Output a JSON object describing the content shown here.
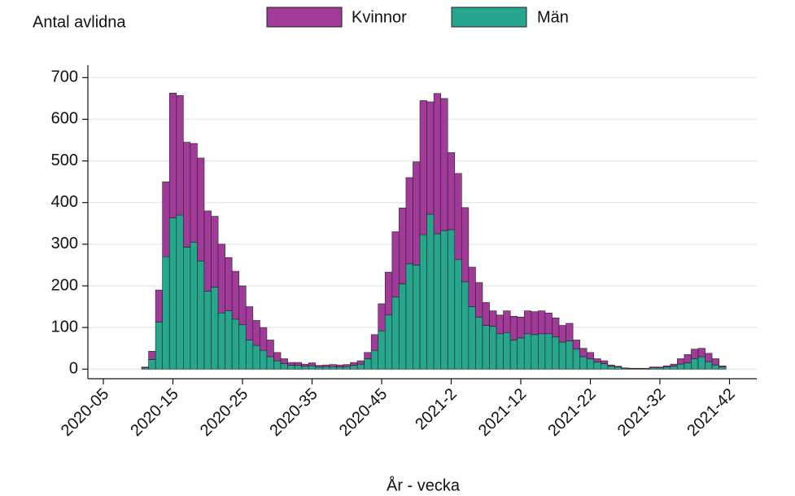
{
  "chart_data": {
    "type": "stacked-bar",
    "y_label": "Antal avlidna",
    "x_label": "År - vecka",
    "categories": [
      "2020-05",
      null,
      null,
      null,
      null,
      null,
      null,
      null,
      null,
      null,
      "2020-15",
      null,
      null,
      null,
      null,
      null,
      null,
      null,
      null,
      null,
      "2020-25",
      null,
      null,
      null,
      null,
      null,
      null,
      null,
      null,
      null,
      "2020-35",
      null,
      null,
      null,
      null,
      null,
      null,
      null,
      null,
      null,
      "2020-45",
      null,
      null,
      null,
      null,
      null,
      null,
      null,
      null,
      null,
      "2021-2",
      null,
      null,
      null,
      null,
      null,
      null,
      null,
      null,
      null,
      "2021-12",
      null,
      null,
      null,
      null,
      null,
      null,
      null,
      null,
      null,
      "2021-22",
      null,
      null,
      null,
      null,
      null,
      null,
      null,
      null,
      null,
      "2021-32",
      null,
      null,
      null,
      null,
      null,
      null,
      null,
      null,
      null,
      "2021-42"
    ],
    "series": [
      {
        "name": "Män",
        "color": "#26a68c",
        "values": [
          null,
          null,
          null,
          null,
          null,
          null,
          3,
          23,
          113,
          270,
          363,
          370,
          293,
          305,
          260,
          187,
          197,
          135,
          140,
          120,
          107,
          70,
          57,
          45,
          30,
          20,
          13,
          9,
          9,
          7,
          8,
          5,
          6,
          6,
          5,
          6,
          9,
          12,
          25,
          45,
          92,
          130,
          173,
          205,
          253,
          250,
          323,
          372,
          325,
          333,
          335,
          263,
          210,
          150,
          125,
          105,
          103,
          85,
          88,
          70,
          75,
          85,
          83,
          85,
          85,
          78,
          65,
          68,
          48,
          30,
          25,
          17,
          13,
          7,
          5,
          2,
          1,
          1,
          1,
          3,
          3,
          5,
          7,
          12,
          15,
          25,
          30,
          18,
          10,
          5,
          null
        ]
      },
      {
        "name": "Kvinnor",
        "color": "#a23a99",
        "values": [
          null,
          null,
          null,
          null,
          null,
          null,
          2,
          20,
          77,
          180,
          300,
          287,
          252,
          237,
          247,
          193,
          170,
          165,
          128,
          115,
          93,
          80,
          60,
          55,
          40,
          20,
          12,
          7,
          7,
          5,
          7,
          4,
          4,
          5,
          5,
          5,
          7,
          8,
          15,
          38,
          65,
          103,
          157,
          182,
          207,
          248,
          322,
          270,
          337,
          317,
          185,
          207,
          178,
          95,
          83,
          55,
          37,
          45,
          52,
          57,
          50,
          55,
          55,
          55,
          50,
          45,
          40,
          42,
          22,
          20,
          15,
          8,
          7,
          3,
          2,
          1,
          1,
          1,
          1,
          2,
          2,
          3,
          5,
          13,
          20,
          23,
          20,
          20,
          15,
          3,
          null
        ]
      }
    ],
    "ylim": [
      -23,
      730
    ],
    "yticks": [
      0,
      100,
      200,
      300,
      400,
      500,
      600,
      700
    ],
    "grid": true
  }
}
